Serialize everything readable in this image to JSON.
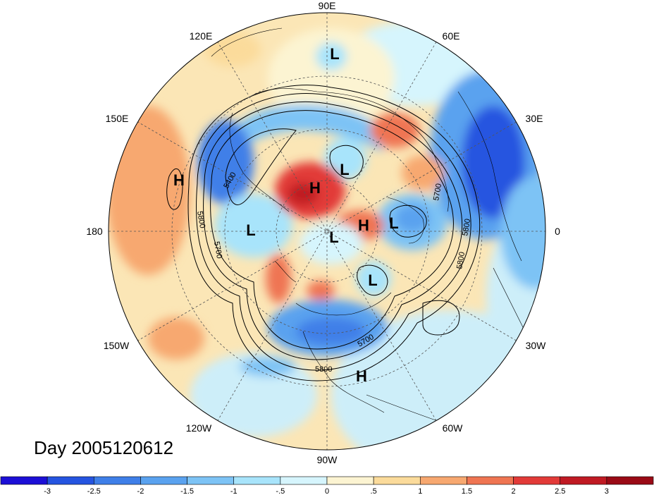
{
  "day_label": "Day 2005120612",
  "longitude_labels": [
    "90E",
    "60E",
    "30E",
    "0",
    "30W",
    "60W",
    "90W",
    "120W",
    "150W",
    "180",
    "150E",
    "120E"
  ],
  "systems": [
    {
      "id": "L-asia",
      "label": "L"
    },
    {
      "id": "L-sib-east",
      "label": "L"
    },
    {
      "id": "H-arctic-east",
      "label": "H"
    },
    {
      "id": "H-scand",
      "label": "H"
    },
    {
      "id": "H-pacific",
      "label": "H"
    },
    {
      "id": "L-bering",
      "label": "L"
    },
    {
      "id": "L-pole",
      "label": "L"
    },
    {
      "id": "L-europe",
      "label": "L"
    },
    {
      "id": "L-atlantic",
      "label": "L"
    },
    {
      "id": "H-gulf",
      "label": "H"
    }
  ],
  "contour_labels": {
    "asia_5400": "5400",
    "pacific_5800": "5800",
    "pacific_5700": "5700",
    "atlantic_5700": "5700",
    "atlantic_5800a": "5800",
    "atlantic_5800b": "5800",
    "america_5700": "5700",
    "america_5800": "5800"
  },
  "colorbar": {
    "ticks": [
      "-3",
      "-2.5",
      "-2",
      "-1.5",
      "-1",
      "-.5",
      "0",
      ".5",
      "1",
      "1.5",
      "2",
      "2.5",
      "3"
    ],
    "colors": [
      "#1c0fd6",
      "#2554e0",
      "#3f7fe8",
      "#5aa2ef",
      "#7dc3f5",
      "#a8e4fb",
      "#d6f5fd",
      "#fcf4d2",
      "#fbdb9b",
      "#f7a870",
      "#ef7552",
      "#e23a38",
      "#c01a23",
      "#9a0a16"
    ]
  }
}
